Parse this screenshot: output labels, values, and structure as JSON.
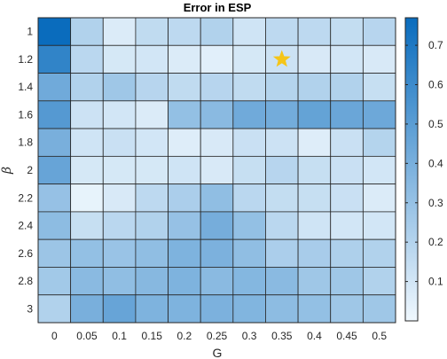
{
  "chart_data": {
    "type": "heatmap",
    "title": "Error in ESP",
    "xlabel": "G",
    "ylabel": "β",
    "x_categories": [
      "0",
      "0.05",
      "0.1",
      "0.15",
      "0.2",
      "0.25",
      "0.3",
      "0.35",
      "0.4",
      "0.45",
      "0.5"
    ],
    "y_categories": [
      "1",
      "1.2",
      "1.4",
      "1.6",
      "1.8",
      "2",
      "2.2",
      "2.4",
      "2.6",
      "2.8",
      "3"
    ],
    "values": [
      [
        0.77,
        0.21,
        0.07,
        0.16,
        0.17,
        0.21,
        0.11,
        0.17,
        0.17,
        0.15,
        0.19
      ],
      [
        0.64,
        0.18,
        0.09,
        0.1,
        0.07,
        0.05,
        0.09,
        0.12,
        0.08,
        0.1,
        0.08
      ],
      [
        0.43,
        0.21,
        0.27,
        0.19,
        0.16,
        0.19,
        0.16,
        0.2,
        0.21,
        0.21,
        0.14
      ],
      [
        0.52,
        0.12,
        0.1,
        0.07,
        0.31,
        0.34,
        0.43,
        0.42,
        0.47,
        0.45,
        0.44
      ],
      [
        0.4,
        0.11,
        0.13,
        0.1,
        0.06,
        0.08,
        0.13,
        0.12,
        0.06,
        0.13,
        0.2
      ],
      [
        0.46,
        0.09,
        0.09,
        0.09,
        0.11,
        0.08,
        0.14,
        0.19,
        0.14,
        0.13,
        0.1
      ],
      [
        0.3,
        0.03,
        0.08,
        0.17,
        0.23,
        0.32,
        0.18,
        0.15,
        0.14,
        0.13,
        0.07
      ],
      [
        0.33,
        0.14,
        0.18,
        0.21,
        0.3,
        0.41,
        0.31,
        0.18,
        0.11,
        0.1,
        0.1
      ],
      [
        0.28,
        0.31,
        0.29,
        0.32,
        0.38,
        0.39,
        0.32,
        0.23,
        0.24,
        0.22,
        0.21
      ],
      [
        0.26,
        0.34,
        0.32,
        0.35,
        0.38,
        0.34,
        0.36,
        0.34,
        0.27,
        0.27,
        0.21
      ],
      [
        0.21,
        0.4,
        0.46,
        0.38,
        0.38,
        0.39,
        0.37,
        0.33,
        0.31,
        0.27,
        0.27
      ]
    ],
    "marker": {
      "shape": "star",
      "color": "#f5c518",
      "x": "0.35",
      "y": "1.2"
    },
    "colorbar": {
      "range": [
        0,
        0.77
      ],
      "ticks": [
        "0.1",
        "0.2",
        "0.3",
        "0.4",
        "0.5",
        "0.6",
        "0.7"
      ],
      "tick_values": [
        0.1,
        0.2,
        0.3,
        0.4,
        0.5,
        0.6,
        0.7
      ],
      "low_color": "#f0f8fe",
      "high_color": "#0a6cbd"
    },
    "grid": true
  }
}
